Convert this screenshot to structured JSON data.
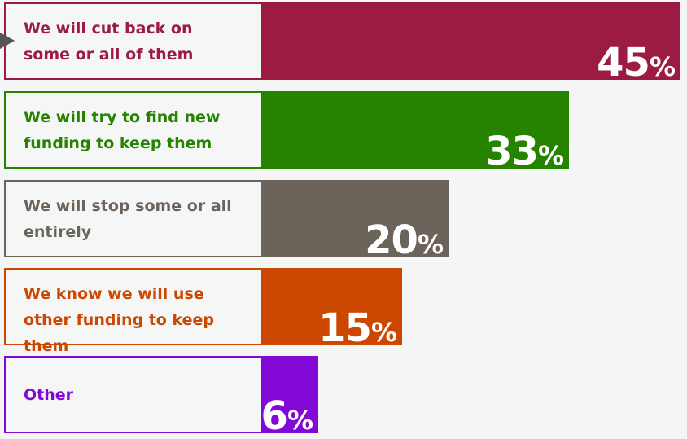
{
  "chart_data": {
    "type": "bar",
    "orientation": "horizontal",
    "categories": [
      "We will cut back on some or all of them",
      "We will try to find new funding to keep them",
      "We will stop some or all entirely",
      "We know we will use other funding to keep them",
      "Other"
    ],
    "values": [
      45,
      33,
      20,
      15,
      6
    ],
    "unit": "%",
    "colors": [
      "#9c1b43",
      "#258300",
      "#6c635a",
      "#cc4700",
      "#8208d6"
    ],
    "xlim": [
      0,
      45
    ],
    "grid": false
  }
}
